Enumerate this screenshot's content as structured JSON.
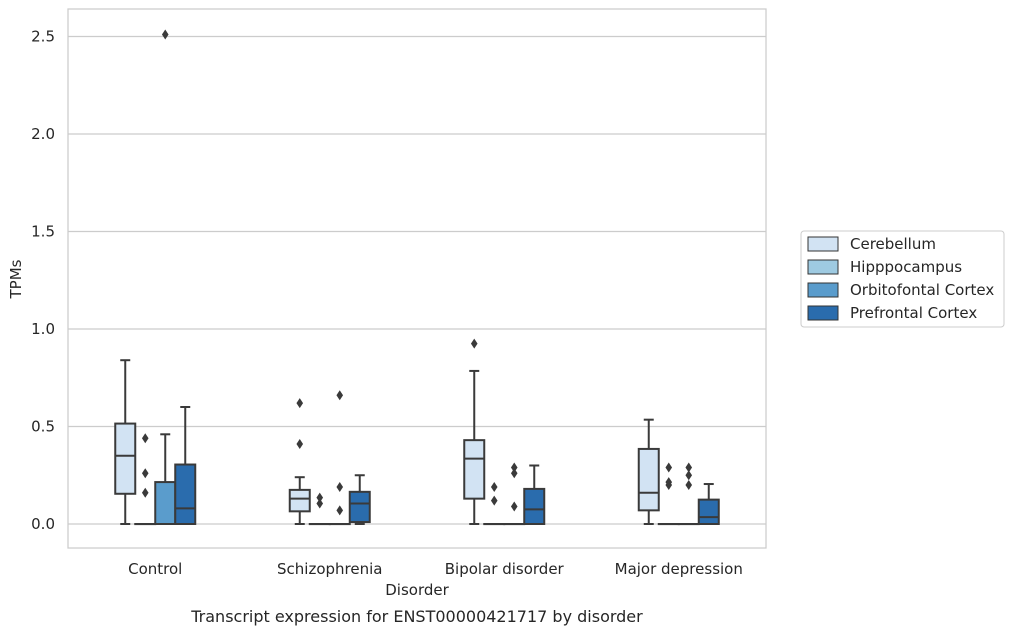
{
  "chart_data": {
    "type": "box",
    "title": "",
    "caption": "Transcript expression for ENST00000421717 by disorder",
    "xlabel": "Disorder",
    "ylabel": "TPMs",
    "ylim": [
      -0.12,
      2.65
    ],
    "yticks": [
      0.0,
      0.5,
      1.0,
      1.5,
      2.0,
      2.5
    ],
    "ytick_labels": [
      "0.0",
      "0.5",
      "1.0",
      "1.5",
      "2.0",
      "2.5"
    ],
    "categories": [
      "Control",
      "Schizophrenia",
      "Bipolar disorder",
      "Major depression"
    ],
    "grid": "horizontal",
    "legend_position": "right",
    "series": [
      {
        "name": "Cerebellum",
        "color": "#d2e3f3",
        "boxes": [
          {
            "whislo": 0.0,
            "q1": 0.155,
            "med": 0.35,
            "q3": 0.515,
            "whishi": 0.84,
            "fliers": []
          },
          {
            "whislo": 0.0,
            "q1": 0.065,
            "med": 0.13,
            "q3": 0.175,
            "whishi": 0.24,
            "fliers": [
              0.41,
              0.62
            ]
          },
          {
            "whislo": 0.0,
            "q1": 0.13,
            "med": 0.335,
            "q3": 0.43,
            "whishi": 0.785,
            "fliers": [
              0.925
            ]
          },
          {
            "whislo": 0.0,
            "q1": 0.07,
            "med": 0.16,
            "q3": 0.385,
            "whishi": 0.535,
            "fliers": []
          }
        ]
      },
      {
        "name": "Hipppocampus",
        "color": "#9ecae1",
        "boxes": [
          {
            "whislo": 0.0,
            "q1": 0.0,
            "med": 0.0,
            "q3": 0.0,
            "whishi": 0.0,
            "fliers": [
              0.16,
              0.26,
              0.44
            ]
          },
          {
            "whislo": 0.0,
            "q1": 0.0,
            "med": 0.0,
            "q3": 0.0,
            "whishi": 0.0,
            "fliers": [
              0.105,
              0.135
            ]
          },
          {
            "whislo": 0.0,
            "q1": 0.0,
            "med": 0.0,
            "q3": 0.0,
            "whishi": 0.0,
            "fliers": [
              0.12,
              0.19
            ]
          },
          {
            "whislo": 0.0,
            "q1": 0.0,
            "med": 0.0,
            "q3": 0.0,
            "whishi": 0.0,
            "fliers": [
              0.2,
              0.215,
              0.29
            ]
          }
        ]
      },
      {
        "name": "Orbitofontal Cortex",
        "color": "#5a9ccc",
        "boxes": [
          {
            "whislo": 0.0,
            "q1": 0.0,
            "med": 0.0,
            "q3": 0.215,
            "whishi": 0.46,
            "fliers": [
              2.51
            ]
          },
          {
            "whislo": 0.0,
            "q1": 0.0,
            "med": 0.0,
            "q3": 0.0,
            "whishi": 0.0,
            "fliers": [
              0.07,
              0.19,
              0.66
            ]
          },
          {
            "whislo": 0.0,
            "q1": 0.0,
            "med": 0.0,
            "q3": 0.0,
            "whishi": 0.0,
            "fliers": [
              0.09,
              0.26,
              0.29
            ]
          },
          {
            "whislo": 0.0,
            "q1": 0.0,
            "med": 0.0,
            "q3": 0.0,
            "whishi": 0.0,
            "fliers": [
              0.2,
              0.25,
              0.29
            ]
          }
        ]
      },
      {
        "name": "Prefrontal Cortex",
        "color": "#2a6cad",
        "boxes": [
          {
            "whislo": 0.0,
            "q1": 0.0,
            "med": 0.08,
            "q3": 0.305,
            "whishi": 0.6,
            "fliers": []
          },
          {
            "whislo": 0.0,
            "q1": 0.01,
            "med": 0.105,
            "q3": 0.165,
            "whishi": 0.25,
            "fliers": []
          },
          {
            "whislo": 0.0,
            "q1": 0.0,
            "med": 0.075,
            "q3": 0.18,
            "whishi": 0.3,
            "fliers": []
          },
          {
            "whislo": 0.0,
            "q1": 0.0,
            "med": 0.035,
            "q3": 0.125,
            "whishi": 0.205,
            "fliers": []
          }
        ]
      }
    ]
  }
}
